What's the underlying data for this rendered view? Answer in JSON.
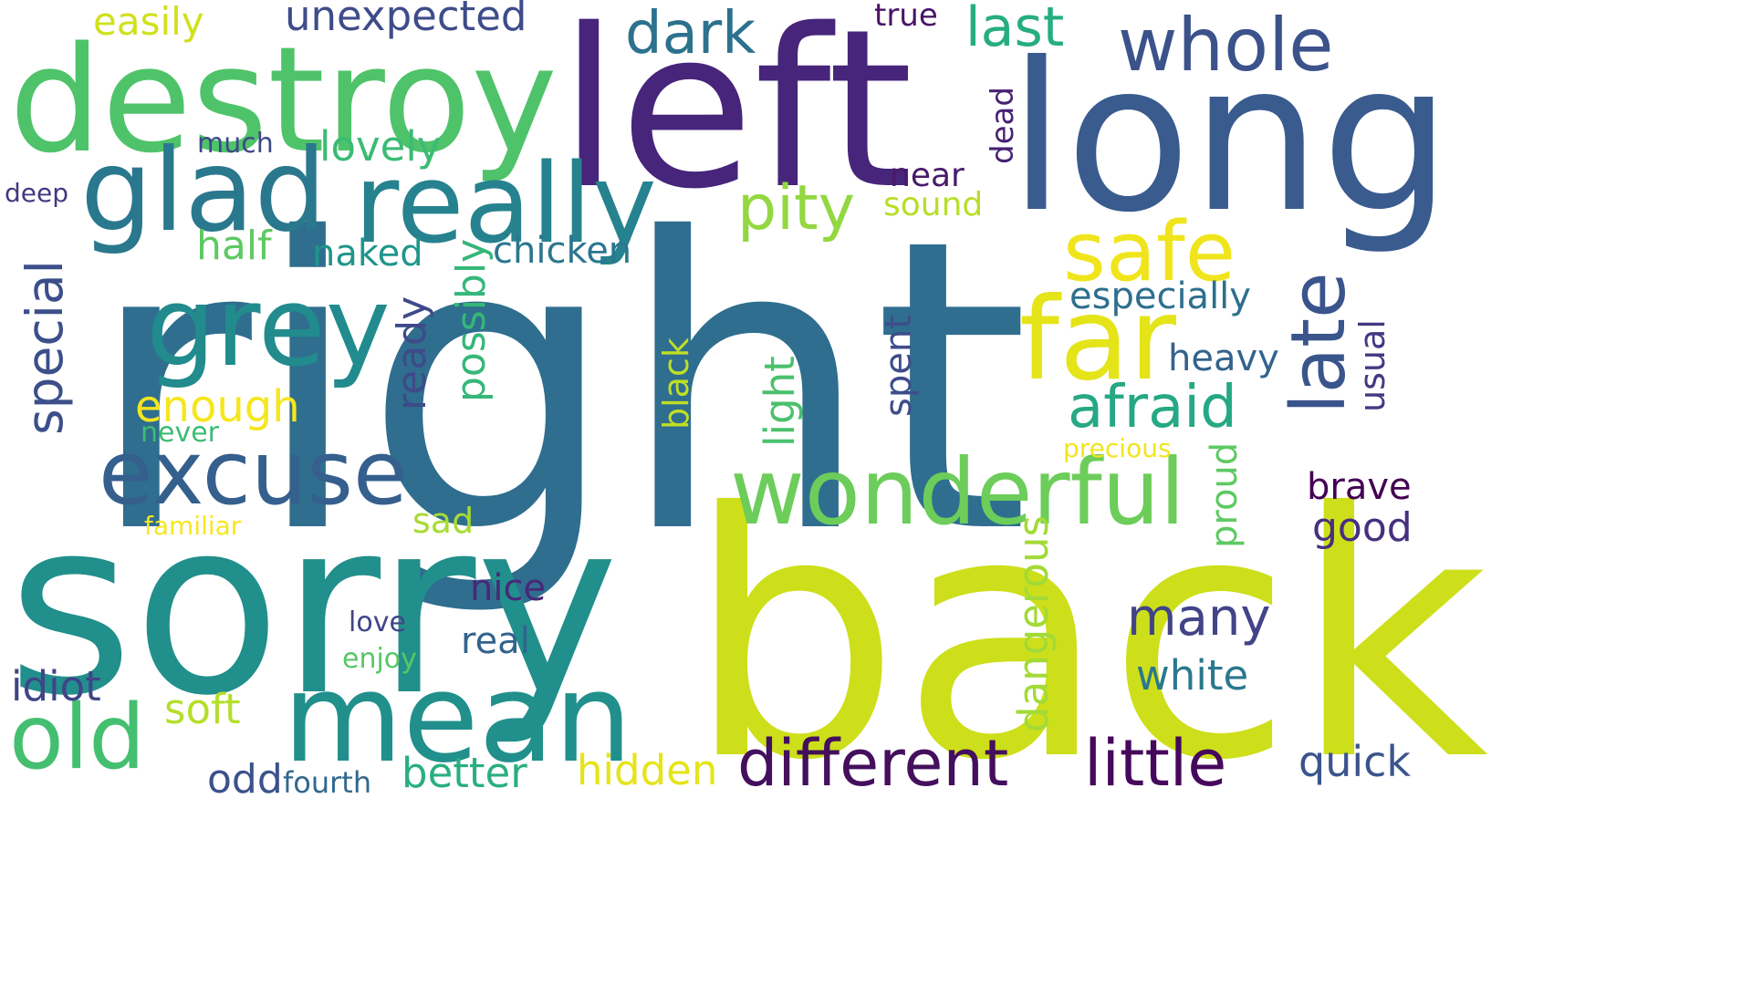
{
  "words": [
    {
      "id": "right",
      "text": "right",
      "color": "#2f6e8e",
      "orientation": "horizontal"
    },
    {
      "id": "back",
      "text": "back",
      "color": "#cddf1a",
      "orientation": "horizontal"
    },
    {
      "id": "sorry",
      "text": "sorry",
      "color": "#218f8c",
      "orientation": "horizontal"
    },
    {
      "id": "left",
      "text": "left",
      "color": "#46257b",
      "orientation": "horizontal"
    },
    {
      "id": "long",
      "text": "long",
      "color": "#3a5b8e",
      "orientation": "horizontal"
    },
    {
      "id": "destroy",
      "text": "destroy",
      "color": "#4fc36a",
      "orientation": "horizontal"
    },
    {
      "id": "really",
      "text": "really",
      "color": "#26828e",
      "orientation": "horizontal"
    },
    {
      "id": "glad",
      "text": "glad",
      "color": "#2a788e",
      "orientation": "horizontal"
    },
    {
      "id": "mean",
      "text": "mean",
      "color": "#21908c",
      "orientation": "horizontal"
    },
    {
      "id": "wonderful",
      "text": "wonderful",
      "color": "#6ccd5a",
      "orientation": "horizontal"
    },
    {
      "id": "excuse",
      "text": "excuse",
      "color": "#355f8d",
      "orientation": "horizontal"
    },
    {
      "id": "grey",
      "text": "grey",
      "color": "#228b8d",
      "orientation": "horizontal"
    },
    {
      "id": "far",
      "text": "far",
      "color": "#e4e419",
      "orientation": "horizontal"
    },
    {
      "id": "safe",
      "text": "safe",
      "color": "#f0e51c",
      "orientation": "horizontal"
    },
    {
      "id": "whole",
      "text": "whole",
      "color": "#3b528b",
      "orientation": "horizontal"
    },
    {
      "id": "old",
      "text": "old",
      "color": "#44bf70",
      "orientation": "horizontal"
    },
    {
      "id": "different",
      "text": "different",
      "color": "#440f5d",
      "orientation": "horizontal"
    },
    {
      "id": "little",
      "text": "little",
      "color": "#46085c",
      "orientation": "horizontal"
    },
    {
      "id": "late",
      "text": "late",
      "color": "#3a548c",
      "orientation": "vertical"
    },
    {
      "id": "afraid",
      "text": "afraid",
      "color": "#26a884",
      "orientation": "horizontal"
    },
    {
      "id": "pity",
      "text": "pity",
      "color": "#93d741",
      "orientation": "horizontal"
    },
    {
      "id": "dark",
      "text": "dark",
      "color": "#2c718e",
      "orientation": "horizontal"
    },
    {
      "id": "last",
      "text": "last",
      "color": "#26ad81",
      "orientation": "horizontal"
    },
    {
      "id": "special",
      "text": "special",
      "color": "#3c4f8a",
      "orientation": "vertical"
    },
    {
      "id": "many",
      "text": "many",
      "color": "#414487",
      "orientation": "horizontal"
    },
    {
      "id": "unexpected",
      "text": "unexpected",
      "color": "#3e4c8a",
      "orientation": "horizontal"
    },
    {
      "id": "lovely",
      "text": "lovely",
      "color": "#3bbb75",
      "orientation": "horizontal"
    },
    {
      "id": "enough",
      "text": "enough",
      "color": "#f5e61e",
      "orientation": "horizontal"
    },
    {
      "id": "dangerous",
      "text": "dangerous",
      "color": "#a2da37",
      "orientation": "vertical"
    },
    {
      "id": "easily",
      "text": "easily",
      "color": "#d0e11c",
      "orientation": "horizontal"
    },
    {
      "id": "ready",
      "text": "ready",
      "color": "#3e4a89",
      "orientation": "vertical"
    },
    {
      "id": "possibly",
      "text": "possibly",
      "color": "#35b779",
      "orientation": "vertical"
    },
    {
      "id": "chicken",
      "text": "chicken",
      "color": "#2a768e",
      "orientation": "horizontal"
    },
    {
      "id": "especially",
      "text": "especially",
      "color": "#2e6f8e",
      "orientation": "horizontal"
    },
    {
      "id": "idiot",
      "text": "idiot",
      "color": "#404588",
      "orientation": "horizontal"
    },
    {
      "id": "half",
      "text": "half",
      "color": "#5ec962",
      "orientation": "horizontal"
    },
    {
      "id": "naked",
      "text": "naked",
      "color": "#1f958b",
      "orientation": "horizontal"
    },
    {
      "id": "light",
      "text": "light",
      "color": "#4ac16d",
      "orientation": "vertical"
    },
    {
      "id": "black",
      "text": "black",
      "color": "#c0df25",
      "orientation": "vertical"
    },
    {
      "id": "spent",
      "text": "spent",
      "color": "#3d4d8a",
      "orientation": "vertical"
    },
    {
      "id": "heavy",
      "text": "heavy",
      "color": "#33638d",
      "orientation": "horizontal"
    },
    {
      "id": "usual",
      "text": "usual",
      "color": "#453882",
      "orientation": "vertical"
    },
    {
      "id": "white",
      "text": "white",
      "color": "#2a788e",
      "orientation": "horizontal"
    },
    {
      "id": "soft",
      "text": "soft",
      "color": "#b5de2b",
      "orientation": "horizontal"
    },
    {
      "id": "better",
      "text": "better",
      "color": "#29af7f",
      "orientation": "horizontal"
    },
    {
      "id": "hidden",
      "text": "hidden",
      "color": "#e5e419",
      "orientation": "horizontal"
    },
    {
      "id": "quick",
      "text": "quick",
      "color": "#3a548c",
      "orientation": "horizontal"
    },
    {
      "id": "proud",
      "text": "proud",
      "color": "#5ec962",
      "orientation": "vertical"
    },
    {
      "id": "brave",
      "text": "brave",
      "color": "#440154",
      "orientation": "horizontal"
    },
    {
      "id": "good",
      "text": "good",
      "color": "#46307e",
      "orientation": "horizontal"
    },
    {
      "id": "nice",
      "text": "nice",
      "color": "#482878",
      "orientation": "horizontal"
    },
    {
      "id": "real",
      "text": "real",
      "color": "#33638d",
      "orientation": "horizontal"
    },
    {
      "id": "odd",
      "text": "odd",
      "color": "#3b528b",
      "orientation": "horizontal"
    },
    {
      "id": "fourth",
      "text": "fourth",
      "color": "#31688e",
      "orientation": "horizontal"
    },
    {
      "id": "sad",
      "text": "sad",
      "color": "#a8db34",
      "orientation": "horizontal"
    },
    {
      "id": "near",
      "text": "near",
      "color": "#481a6c",
      "orientation": "horizontal"
    },
    {
      "id": "sound",
      "text": "sound",
      "color": "#b8de29",
      "orientation": "horizontal"
    },
    {
      "id": "dead",
      "text": "dead",
      "color": "#482173",
      "orientation": "vertical"
    },
    {
      "id": "true",
      "text": "true",
      "color": "#481467",
      "orientation": "horizontal"
    },
    {
      "id": "much",
      "text": "much",
      "color": "#3e4989",
      "orientation": "horizontal"
    },
    {
      "id": "deep",
      "text": "deep",
      "color": "#453781",
      "orientation": "horizontal"
    },
    {
      "id": "never",
      "text": "never",
      "color": "#3dbc74",
      "orientation": "horizontal"
    },
    {
      "id": "precious",
      "text": "precious",
      "color": "#f1e51d",
      "orientation": "horizontal"
    },
    {
      "id": "familiar",
      "text": "familiar",
      "color": "#f8e621",
      "orientation": "horizontal"
    },
    {
      "id": "love",
      "text": "love",
      "color": "#414487",
      "orientation": "horizontal"
    },
    {
      "id": "enjoy",
      "text": "enjoy",
      "color": "#58c765",
      "orientation": "horizontal"
    }
  ]
}
